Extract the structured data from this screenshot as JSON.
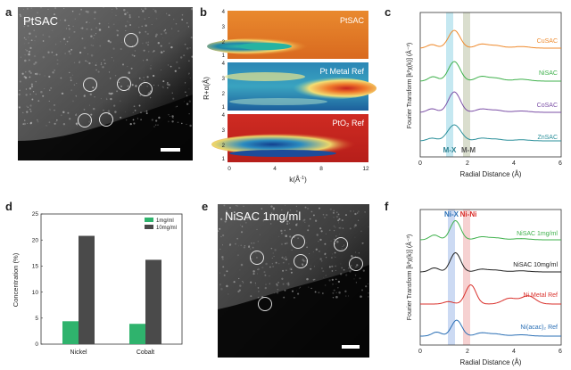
{
  "figure": {
    "panel_letters": {
      "a": "a",
      "b": "b",
      "c": "c",
      "d": "d",
      "e": "e",
      "f": "f"
    }
  },
  "panel_a": {
    "label": "PtSAC"
  },
  "panel_e": {
    "label": "NiSAC 1mg/ml"
  },
  "panel_b": {
    "maps": [
      "PtSAC",
      "Pt Metal Ref",
      "PtO₂ Ref"
    ],
    "ylabel": "R+α(Å)",
    "xlabel_parts": [
      "k(Å",
      "-1",
      ")"
    ],
    "xticks": [
      "0",
      "4",
      "8",
      "12"
    ],
    "yticks": [
      "1",
      "2",
      "3",
      "4"
    ]
  },
  "chart_data": [
    {
      "type": "bar",
      "title": "",
      "ylabel": "Concentration (%)",
      "xlabel": "",
      "categories": [
        "Nickel",
        "Cobalt"
      ],
      "ylim": [
        0,
        25
      ],
      "yticks": [
        "0",
        "5",
        "10",
        "15",
        "20",
        "25"
      ],
      "legend_position": "top-right",
      "series": [
        {
          "name": "1mg/ml",
          "color": "#2fb36d",
          "values": [
            4.4,
            3.9
          ]
        },
        {
          "name": "10mg/ml",
          "color": "#4a4a4a",
          "values": [
            20.8,
            16.2
          ]
        }
      ]
    },
    {
      "type": "line",
      "title": "",
      "xlabel": "Radial Distance (Å)",
      "ylabel": "Fourier Transform [k²χ(k)] (Å⁻³)",
      "xlim": [
        0,
        6
      ],
      "xticks": [
        "0",
        "2",
        "4",
        "6"
      ],
      "bands": [
        "M-X",
        "M-M"
      ],
      "series": [
        {
          "name": "CuSAC",
          "color": "#ef8a2c"
        },
        {
          "name": "NiSAC",
          "color": "#3fb14c"
        },
        {
          "name": "CoSAC",
          "color": "#7b4fa6"
        },
        {
          "name": "ZnSAC",
          "color": "#2a8f9a"
        }
      ]
    },
    {
      "type": "line",
      "title": "",
      "xlabel": "Radial Distance (Å)",
      "ylabel": "Fourier Transform [k²χ(k)] (Å⁻³)",
      "xlim": [
        0,
        6
      ],
      "xticks": [
        "0",
        "2",
        "4",
        "6"
      ],
      "bands": [
        "Ni-X",
        "Ni-Ni"
      ],
      "series": [
        {
          "name": "NiSAC 1mg/ml",
          "color": "#3fb14c"
        },
        {
          "name": "NiSAC 10mg/ml",
          "color": "#222222"
        },
        {
          "name": "Ni Metal Ref",
          "color": "#d9302b"
        },
        {
          "name": "Ni(acac)₂ Ref",
          "color": "#2a6fb5"
        }
      ]
    }
  ]
}
